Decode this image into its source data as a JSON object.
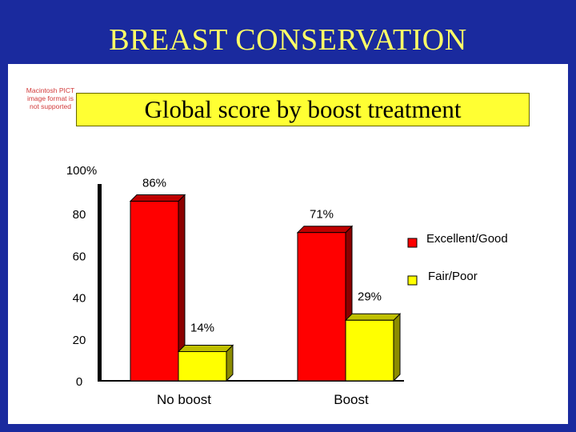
{
  "page": {
    "title": "BREAST CONSERVATION",
    "subtitle": "Global score by boost treatment",
    "pict_note": "Macintosh PICT image format is not supported"
  },
  "colors": {
    "frame": "#1a2a9e",
    "title_text": "#ffff66",
    "subtitle_bg": "#ffff33",
    "excellent_good": "#ff0000",
    "fair_poor": "#ffff00"
  },
  "chart_data": {
    "type": "bar",
    "title": "Global score by boost treatment",
    "categories": [
      "No boost",
      "Boost"
    ],
    "series": [
      {
        "name": "Excellent/Good",
        "values": [
          86,
          71
        ],
        "labels": [
          "86%",
          "71%"
        ]
      },
      {
        "name": "Fair/Poor",
        "values": [
          14,
          29
        ],
        "labels": [
          "14%",
          "29%"
        ]
      }
    ],
    "ylim": [
      0,
      100
    ],
    "yticks": [
      0,
      20,
      40,
      60,
      80,
      100
    ],
    "ytick_labels": [
      "0",
      "20",
      "40",
      "60",
      "80",
      "100%"
    ],
    "xlabel": "",
    "ylabel": "",
    "legend": [
      "Excellent/Good",
      "Fair/Poor"
    ],
    "legend_position": "right",
    "grid": false
  }
}
